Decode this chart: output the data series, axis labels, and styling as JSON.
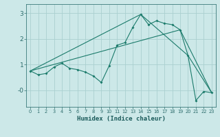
{
  "xlabel": "Humidex (Indice chaleur)",
  "bg_color": "#cce8e8",
  "grid_color": "#aad0d0",
  "line_color": "#1a7a6a",
  "xlim": [
    -0.5,
    23.5
  ],
  "ylim": [
    -0.65,
    3.35
  ],
  "xticks": [
    0,
    1,
    2,
    3,
    4,
    5,
    6,
    7,
    8,
    9,
    10,
    11,
    12,
    13,
    14,
    15,
    16,
    17,
    18,
    19,
    20,
    21,
    22,
    23
  ],
  "yticks": [
    0.0,
    1.0,
    2.0,
    3.0
  ],
  "ytick_labels": [
    "-0",
    "1",
    "2",
    "3"
  ],
  "series1_x": [
    0,
    1,
    2,
    3,
    4,
    5,
    6,
    7,
    8,
    9,
    10,
    11,
    12,
    13,
    14,
    15,
    16,
    17,
    18,
    19,
    20,
    21,
    22,
    23
  ],
  "series1_y": [
    0.75,
    0.6,
    0.65,
    0.9,
    1.05,
    0.85,
    0.8,
    0.7,
    0.55,
    0.3,
    0.95,
    1.75,
    1.85,
    2.45,
    2.95,
    2.55,
    2.7,
    2.6,
    2.55,
    2.35,
    1.35,
    -0.4,
    -0.05,
    -0.1
  ],
  "series2_x": [
    0,
    14,
    20,
    23
  ],
  "series2_y": [
    0.75,
    2.95,
    1.35,
    -0.1
  ],
  "series3_x": [
    0,
    19,
    23
  ],
  "series3_y": [
    0.75,
    2.35,
    -0.1
  ]
}
